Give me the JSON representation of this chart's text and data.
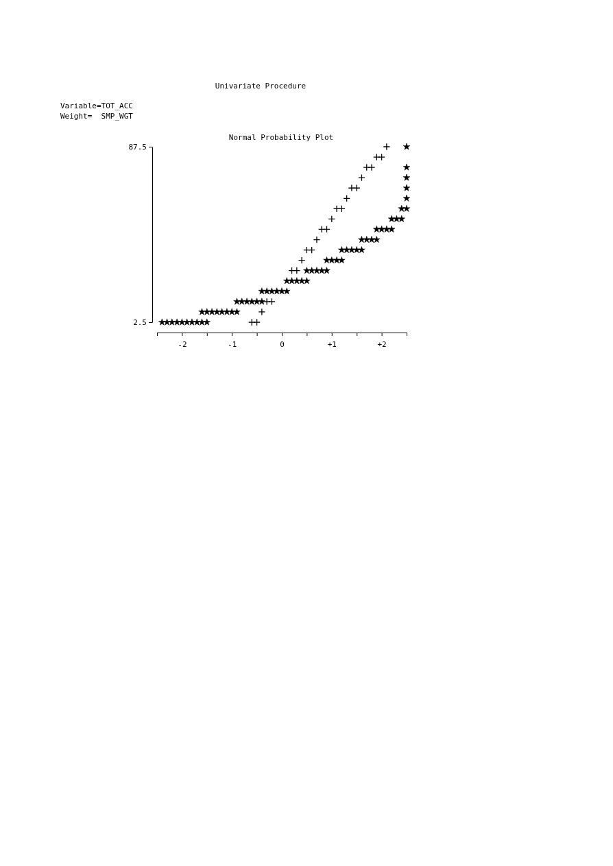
{
  "chart_data": {
    "type": "scatter",
    "title": "Univariate Procedure",
    "subtitle": "Normal Probability Plot",
    "annotations": [
      "Variable=TOT_ACC",
      "Weight=  SMP_WGT"
    ],
    "xlim": [
      -2.5,
      2.5
    ],
    "ylim": [
      2.5,
      87.5
    ],
    "xticks": [
      {
        "value": -2.5,
        "label": null
      },
      {
        "value": -2,
        "label": "-2"
      },
      {
        "value": -1.5,
        "label": null
      },
      {
        "value": -1,
        "label": "-1"
      },
      {
        "value": -0.5,
        "label": null
      },
      {
        "value": 0,
        "label": "0"
      },
      {
        "value": 0.5,
        "label": null
      },
      {
        "value": 1,
        "label": "+1"
      },
      {
        "value": 1.5,
        "label": null
      },
      {
        "value": 2,
        "label": "+2"
      },
      {
        "value": 2.5,
        "label": null
      }
    ],
    "yticks": [
      2.5,
      87.5
    ],
    "grid": false,
    "series": [
      {
        "color": "#000000",
        "marker": "cross",
        "x": [
          -0.6,
          -0.5,
          -0.4,
          -0.3,
          -0.2,
          0.2,
          0.3,
          0.4,
          0.5,
          0.6,
          0.7,
          0.8,
          0.9,
          1.0,
          1.1,
          1.2,
          1.3,
          1.4,
          1.5,
          1.6,
          1.7,
          1.8,
          1.9,
          2.0,
          2.1
        ],
        "values": [
          2.5,
          2.5,
          7.5,
          12.5,
          12.5,
          27.5,
          27.5,
          32.5,
          37.5,
          37.5,
          42.5,
          47.5,
          47.5,
          52.5,
          57.5,
          57.5,
          62.5,
          67.5,
          67.5,
          72.5,
          77.5,
          77.5,
          82.5,
          82.5,
          87.5
        ]
      },
      {
        "color": "#000000",
        "marker": "star",
        "x": [
          -2.4,
          -2.3,
          -2.2,
          -2.1,
          -2.0,
          -1.9,
          -1.8,
          -1.7,
          -1.6,
          -1.5,
          -1.6,
          -1.5,
          -1.4,
          -1.3,
          -1.2,
          -1.1,
          -1.0,
          -0.9,
          -0.9,
          -0.8,
          -0.7,
          -0.6,
          -0.5,
          -0.4,
          -0.4,
          -0.3,
          -0.2,
          -0.1,
          0.0,
          0.1,
          0.1,
          0.2,
          0.3,
          0.4,
          0.5,
          0.5,
          0.6,
          0.7,
          0.8,
          0.9,
          0.9,
          1.0,
          1.1,
          1.2,
          1.2,
          1.3,
          1.4,
          1.5,
          1.6,
          1.6,
          1.7,
          1.8,
          1.9,
          1.9,
          2.0,
          2.1,
          2.2,
          2.2,
          2.3,
          2.4,
          2.4,
          2.5,
          2.5,
          2.5,
          2.5,
          2.5,
          2.5
        ],
        "values": [
          2.5,
          2.5,
          2.5,
          2.5,
          2.5,
          2.5,
          2.5,
          2.5,
          2.5,
          2.5,
          7.5,
          7.5,
          7.5,
          7.5,
          7.5,
          7.5,
          7.5,
          7.5,
          12.5,
          12.5,
          12.5,
          12.5,
          12.5,
          12.5,
          17.5,
          17.5,
          17.5,
          17.5,
          17.5,
          17.5,
          22.5,
          22.5,
          22.5,
          22.5,
          22.5,
          27.5,
          27.5,
          27.5,
          27.5,
          27.5,
          32.5,
          32.5,
          32.5,
          32.5,
          37.5,
          37.5,
          37.5,
          37.5,
          37.5,
          42.5,
          42.5,
          42.5,
          42.5,
          47.5,
          47.5,
          47.5,
          47.5,
          52.5,
          52.5,
          52.5,
          57.5,
          57.5,
          62.5,
          67.5,
          72.5,
          77.5,
          87.5
        ]
      }
    ]
  }
}
